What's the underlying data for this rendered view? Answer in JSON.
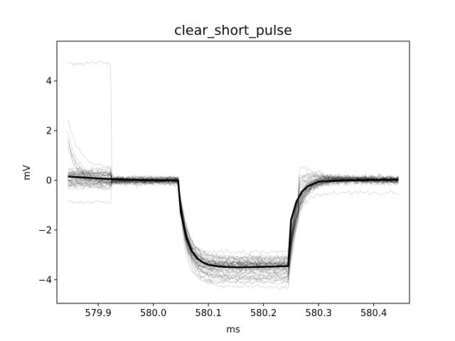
{
  "chart_data": {
    "type": "line",
    "title": "clear_short_pulse",
    "xlabel": "ms",
    "ylabel": "mV",
    "xlim": [
      579.825,
      580.465
    ],
    "ylim": [
      -4.95,
      5.6
    ],
    "xticks": [
      579.9,
      580.0,
      580.1,
      580.2,
      580.3,
      580.4
    ],
    "xtick_labels": [
      "579.9",
      "580.0",
      "580.1",
      "580.2",
      "580.3",
      "580.4"
    ],
    "yticks": [
      -4,
      -2,
      0,
      2,
      4
    ],
    "ytick_labels": [
      "−4",
      "−2",
      "0",
      "2",
      "4"
    ],
    "grid": false,
    "pulse": {
      "start_ms": 580.045,
      "end_ms": 580.245
    },
    "series": [
      {
        "role": "mean",
        "color": "#000000",
        "x": [
          579.845,
          579.87,
          579.9,
          579.925,
          579.95,
          580.0,
          580.045,
          580.05,
          580.06,
          580.07,
          580.08,
          580.09,
          580.1,
          580.12,
          580.15,
          580.2,
          580.245,
          580.25,
          580.26,
          580.27,
          580.28,
          580.3,
          580.35,
          580.4,
          580.445
        ],
        "y": [
          0.15,
          0.12,
          0.08,
          0.05,
          0.03,
          0.0,
          0.0,
          -1.3,
          -2.3,
          -2.85,
          -3.15,
          -3.3,
          -3.4,
          -3.47,
          -3.5,
          -3.48,
          -3.45,
          -1.6,
          -0.85,
          -0.45,
          -0.25,
          -0.05,
          0.0,
          0.02,
          0.03
        ]
      }
    ]
  }
}
